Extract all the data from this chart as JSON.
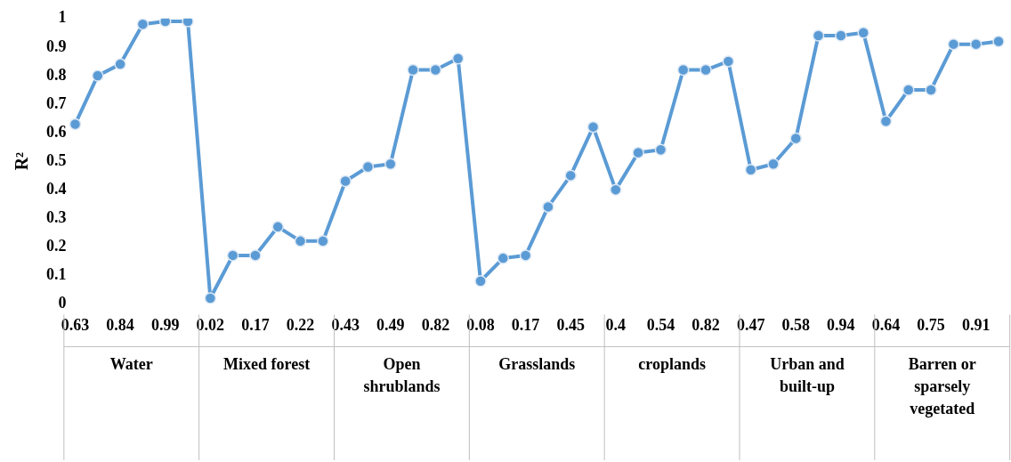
{
  "chart_data": {
    "type": "line",
    "ylabel": "R²",
    "categories": [
      "0.63",
      null,
      "0.84",
      null,
      "0.99",
      null,
      "0.02",
      null,
      "0.17",
      null,
      "0.22",
      null,
      "0.43",
      null,
      "0.49",
      null,
      "0.82",
      null,
      "0.08",
      null,
      "0.17",
      null,
      "0.45",
      null,
      "0.4",
      null,
      "0.54",
      null,
      "0.82",
      null,
      "0.47",
      null,
      "0.58",
      null,
      "0.94",
      null,
      "0.64",
      null,
      "0.75",
      null,
      "0.91",
      null
    ],
    "series": [
      {
        "color": "#5b9bd5",
        "values": [
          0.63,
          0.8,
          0.84,
          0.98,
          0.99,
          0.99,
          0.02,
          0.17,
          0.17,
          0.27,
          0.22,
          0.22,
          0.43,
          0.48,
          0.49,
          0.82,
          0.82,
          0.86,
          0.08,
          0.16,
          0.17,
          0.34,
          0.45,
          0.62,
          0.4,
          0.53,
          0.54,
          0.82,
          0.82,
          0.85,
          0.47,
          0.49,
          0.58,
          0.94,
          0.94,
          0.95,
          0.64,
          0.75,
          0.75,
          0.91,
          0.91,
          0.92
        ]
      }
    ],
    "annotations": [
      "Water",
      "Mixed forest",
      "Open shrublands",
      "Grasslands",
      "croplands",
      "Urban and built-up",
      "Barren or sparsely vegetated"
    ],
    "ylim": [
      0,
      1
    ],
    "yticks": [
      0,
      0.1,
      0.2,
      0.3,
      0.4,
      0.5,
      0.6,
      0.7,
      0.8,
      0.9,
      1
    ],
    "grid": false,
    "legend": false,
    "marker": "circle",
    "line_style": "solid"
  }
}
